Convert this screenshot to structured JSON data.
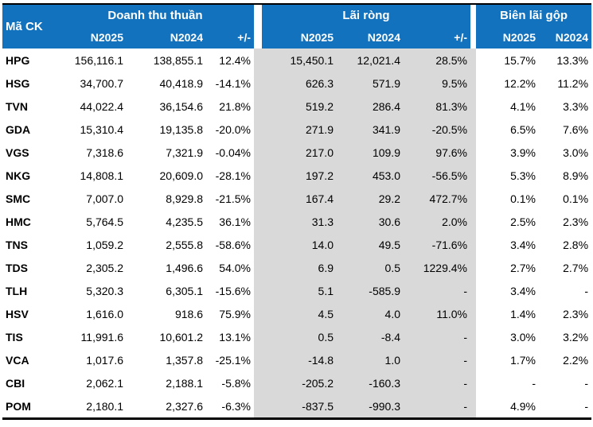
{
  "colors": {
    "header_bg": "#1272BD",
    "header_text": "#FFFFFF",
    "shaded_column_bg": "#D9D9D9",
    "body_text": "#000000",
    "border": "#000000"
  },
  "chart_data": {
    "type": "table",
    "corner_header": "Mã CK",
    "column_groups": [
      {
        "label": "Doanh thu thuần",
        "subcolumns": [
          "N2025",
          "N2024",
          "+/-"
        ]
      },
      {
        "label": "Lãi ròng",
        "subcolumns": [
          "N2025",
          "N2024",
          "+/-"
        ]
      },
      {
        "label": "Biên lãi gộp",
        "subcolumns": [
          "N2025",
          "N2024"
        ]
      }
    ],
    "rows": [
      {
        "code": "HPG",
        "revenue_n2025": "156,116.1",
        "revenue_n2024": "138,855.1",
        "revenue_change": "12.4%",
        "net_profit_n2025": "15,450.1",
        "net_profit_n2024": "12,021.4",
        "net_profit_change": "28.5%",
        "gross_margin_n2025": "15.7%",
        "gross_margin_n2024": "13.3%"
      },
      {
        "code": "HSG",
        "revenue_n2025": "34,700.7",
        "revenue_n2024": "40,418.9",
        "revenue_change": "-14.1%",
        "net_profit_n2025": "626.3",
        "net_profit_n2024": "571.9",
        "net_profit_change": "9.5%",
        "gross_margin_n2025": "12.2%",
        "gross_margin_n2024": "11.2%"
      },
      {
        "code": "TVN",
        "revenue_n2025": "44,022.4",
        "revenue_n2024": "36,154.6",
        "revenue_change": "21.8%",
        "net_profit_n2025": "519.2",
        "net_profit_n2024": "286.4",
        "net_profit_change": "81.3%",
        "gross_margin_n2025": "4.1%",
        "gross_margin_n2024": "3.3%"
      },
      {
        "code": "GDA",
        "revenue_n2025": "15,310.4",
        "revenue_n2024": "19,135.8",
        "revenue_change": "-20.0%",
        "net_profit_n2025": "271.9",
        "net_profit_n2024": "341.9",
        "net_profit_change": "-20.5%",
        "gross_margin_n2025": "6.5%",
        "gross_margin_n2024": "7.6%"
      },
      {
        "code": "VGS",
        "revenue_n2025": "7,318.6",
        "revenue_n2024": "7,321.9",
        "revenue_change": "-0.04%",
        "net_profit_n2025": "217.0",
        "net_profit_n2024": "109.9",
        "net_profit_change": "97.6%",
        "gross_margin_n2025": "3.9%",
        "gross_margin_n2024": "3.0%"
      },
      {
        "code": "NKG",
        "revenue_n2025": "14,808.1",
        "revenue_n2024": "20,609.0",
        "revenue_change": "-28.1%",
        "net_profit_n2025": "197.2",
        "net_profit_n2024": "453.0",
        "net_profit_change": "-56.5%",
        "gross_margin_n2025": "5.3%",
        "gross_margin_n2024": "8.9%"
      },
      {
        "code": "SMC",
        "revenue_n2025": "7,007.0",
        "revenue_n2024": "8,929.8",
        "revenue_change": "-21.5%",
        "net_profit_n2025": "167.4",
        "net_profit_n2024": "29.2",
        "net_profit_change": "472.7%",
        "gross_margin_n2025": "0.1%",
        "gross_margin_n2024": "0.1%"
      },
      {
        "code": "HMC",
        "revenue_n2025": "5,764.5",
        "revenue_n2024": "4,235.5",
        "revenue_change": "36.1%",
        "net_profit_n2025": "31.3",
        "net_profit_n2024": "30.6",
        "net_profit_change": "2.0%",
        "gross_margin_n2025": "2.5%",
        "gross_margin_n2024": "2.3%"
      },
      {
        "code": "TNS",
        "revenue_n2025": "1,059.2",
        "revenue_n2024": "2,555.8",
        "revenue_change": "-58.6%",
        "net_profit_n2025": "14.0",
        "net_profit_n2024": "49.5",
        "net_profit_change": "-71.6%",
        "gross_margin_n2025": "3.4%",
        "gross_margin_n2024": "2.8%"
      },
      {
        "code": "TDS",
        "revenue_n2025": "2,305.2",
        "revenue_n2024": "1,496.6",
        "revenue_change": "54.0%",
        "net_profit_n2025": "6.9",
        "net_profit_n2024": "0.5",
        "net_profit_change": "1229.4%",
        "gross_margin_n2025": "2.7%",
        "gross_margin_n2024": "2.7%"
      },
      {
        "code": "TLH",
        "revenue_n2025": "5,320.3",
        "revenue_n2024": "6,305.1",
        "revenue_change": "-15.6%",
        "net_profit_n2025": "5.1",
        "net_profit_n2024": "-585.9",
        "net_profit_change": "-",
        "gross_margin_n2025": "3.4%",
        "gross_margin_n2024": "-"
      },
      {
        "code": "HSV",
        "revenue_n2025": "1,616.0",
        "revenue_n2024": "918.6",
        "revenue_change": "75.9%",
        "net_profit_n2025": "4.5",
        "net_profit_n2024": "4.0",
        "net_profit_change": "11.0%",
        "gross_margin_n2025": "1.4%",
        "gross_margin_n2024": "2.3%"
      },
      {
        "code": "TIS",
        "revenue_n2025": "11,991.6",
        "revenue_n2024": "10,601.2",
        "revenue_change": "13.1%",
        "net_profit_n2025": "0.5",
        "net_profit_n2024": "-8.4",
        "net_profit_change": "-",
        "gross_margin_n2025": "3.0%",
        "gross_margin_n2024": "3.2%"
      },
      {
        "code": "VCA",
        "revenue_n2025": "1,017.6",
        "revenue_n2024": "1,357.8",
        "revenue_change": "-25.1%",
        "net_profit_n2025": "-14.8",
        "net_profit_n2024": "1.0",
        "net_profit_change": "-",
        "gross_margin_n2025": "1.7%",
        "gross_margin_n2024": "2.2%"
      },
      {
        "code": "CBI",
        "revenue_n2025": "2,062.1",
        "revenue_n2024": "2,188.1",
        "revenue_change": "-5.8%",
        "net_profit_n2025": "-205.2",
        "net_profit_n2024": "-160.3",
        "net_profit_change": "-",
        "gross_margin_n2025": "-",
        "gross_margin_n2024": "-"
      },
      {
        "code": "POM",
        "revenue_n2025": "2,180.1",
        "revenue_n2024": "2,327.6",
        "revenue_change": "-6.3%",
        "net_profit_n2025": "-837.5",
        "net_profit_n2024": "-990.3",
        "net_profit_change": "-",
        "gross_margin_n2025": "4.9%",
        "gross_margin_n2024": "-"
      }
    ]
  }
}
